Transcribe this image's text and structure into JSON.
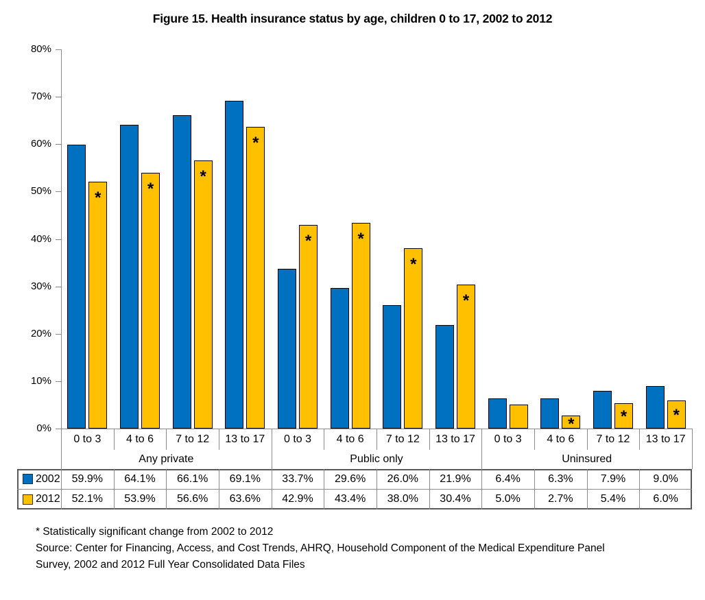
{
  "title": "Figure 15. Health insurance status by age, children 0 to 17, 2002 to 2012",
  "chart_data": {
    "type": "bar",
    "title": "Figure 15. Health insurance status by age, children 0 to 17, 2002 to 2012",
    "groups": [
      {
        "label": "Any private",
        "categories": [
          "0 to 3",
          "4 to 6",
          "7 to 12",
          "13 to 17"
        ]
      },
      {
        "label": "Public only",
        "categories": [
          "0 to 3",
          "4 to 6",
          "7 to 12",
          "13 to 17"
        ]
      },
      {
        "label": "Uninsured",
        "categories": [
          "0 to 3",
          "4 to 6",
          "7 to 12",
          "13 to 17"
        ]
      }
    ],
    "series": [
      {
        "name": "2002",
        "color": "#0070C0",
        "values": [
          59.9,
          64.1,
          66.1,
          69.1,
          33.7,
          29.6,
          26.0,
          21.9,
          6.4,
          6.3,
          7.9,
          9.0
        ]
      },
      {
        "name": "2012",
        "color": "#FFC000",
        "values": [
          52.1,
          53.9,
          56.6,
          63.6,
          42.9,
          43.4,
          38.0,
          30.4,
          5.0,
          2.7,
          5.4,
          6.0
        ],
        "significant": [
          true,
          true,
          true,
          true,
          true,
          true,
          true,
          true,
          false,
          true,
          true,
          true
        ]
      }
    ],
    "ytick_labels": [
      "0%",
      "10%",
      "20%",
      "30%",
      "40%",
      "50%",
      "60%",
      "70%",
      "80%"
    ],
    "ylim": [
      0,
      80
    ],
    "value_suffix": "%",
    "significance_marker": "*",
    "grid": false,
    "legend_position": "table-left"
  },
  "footnotes": {
    "lines": [
      "* Statistically significant change from 2002 to 2012",
      "Source: Center for Financing, Access, and Cost Trends, AHRQ, Household Component of the Medical Expenditure Panel",
      "Survey, 2002 and 2012 Full Year Consolidated Data Files"
    ]
  }
}
